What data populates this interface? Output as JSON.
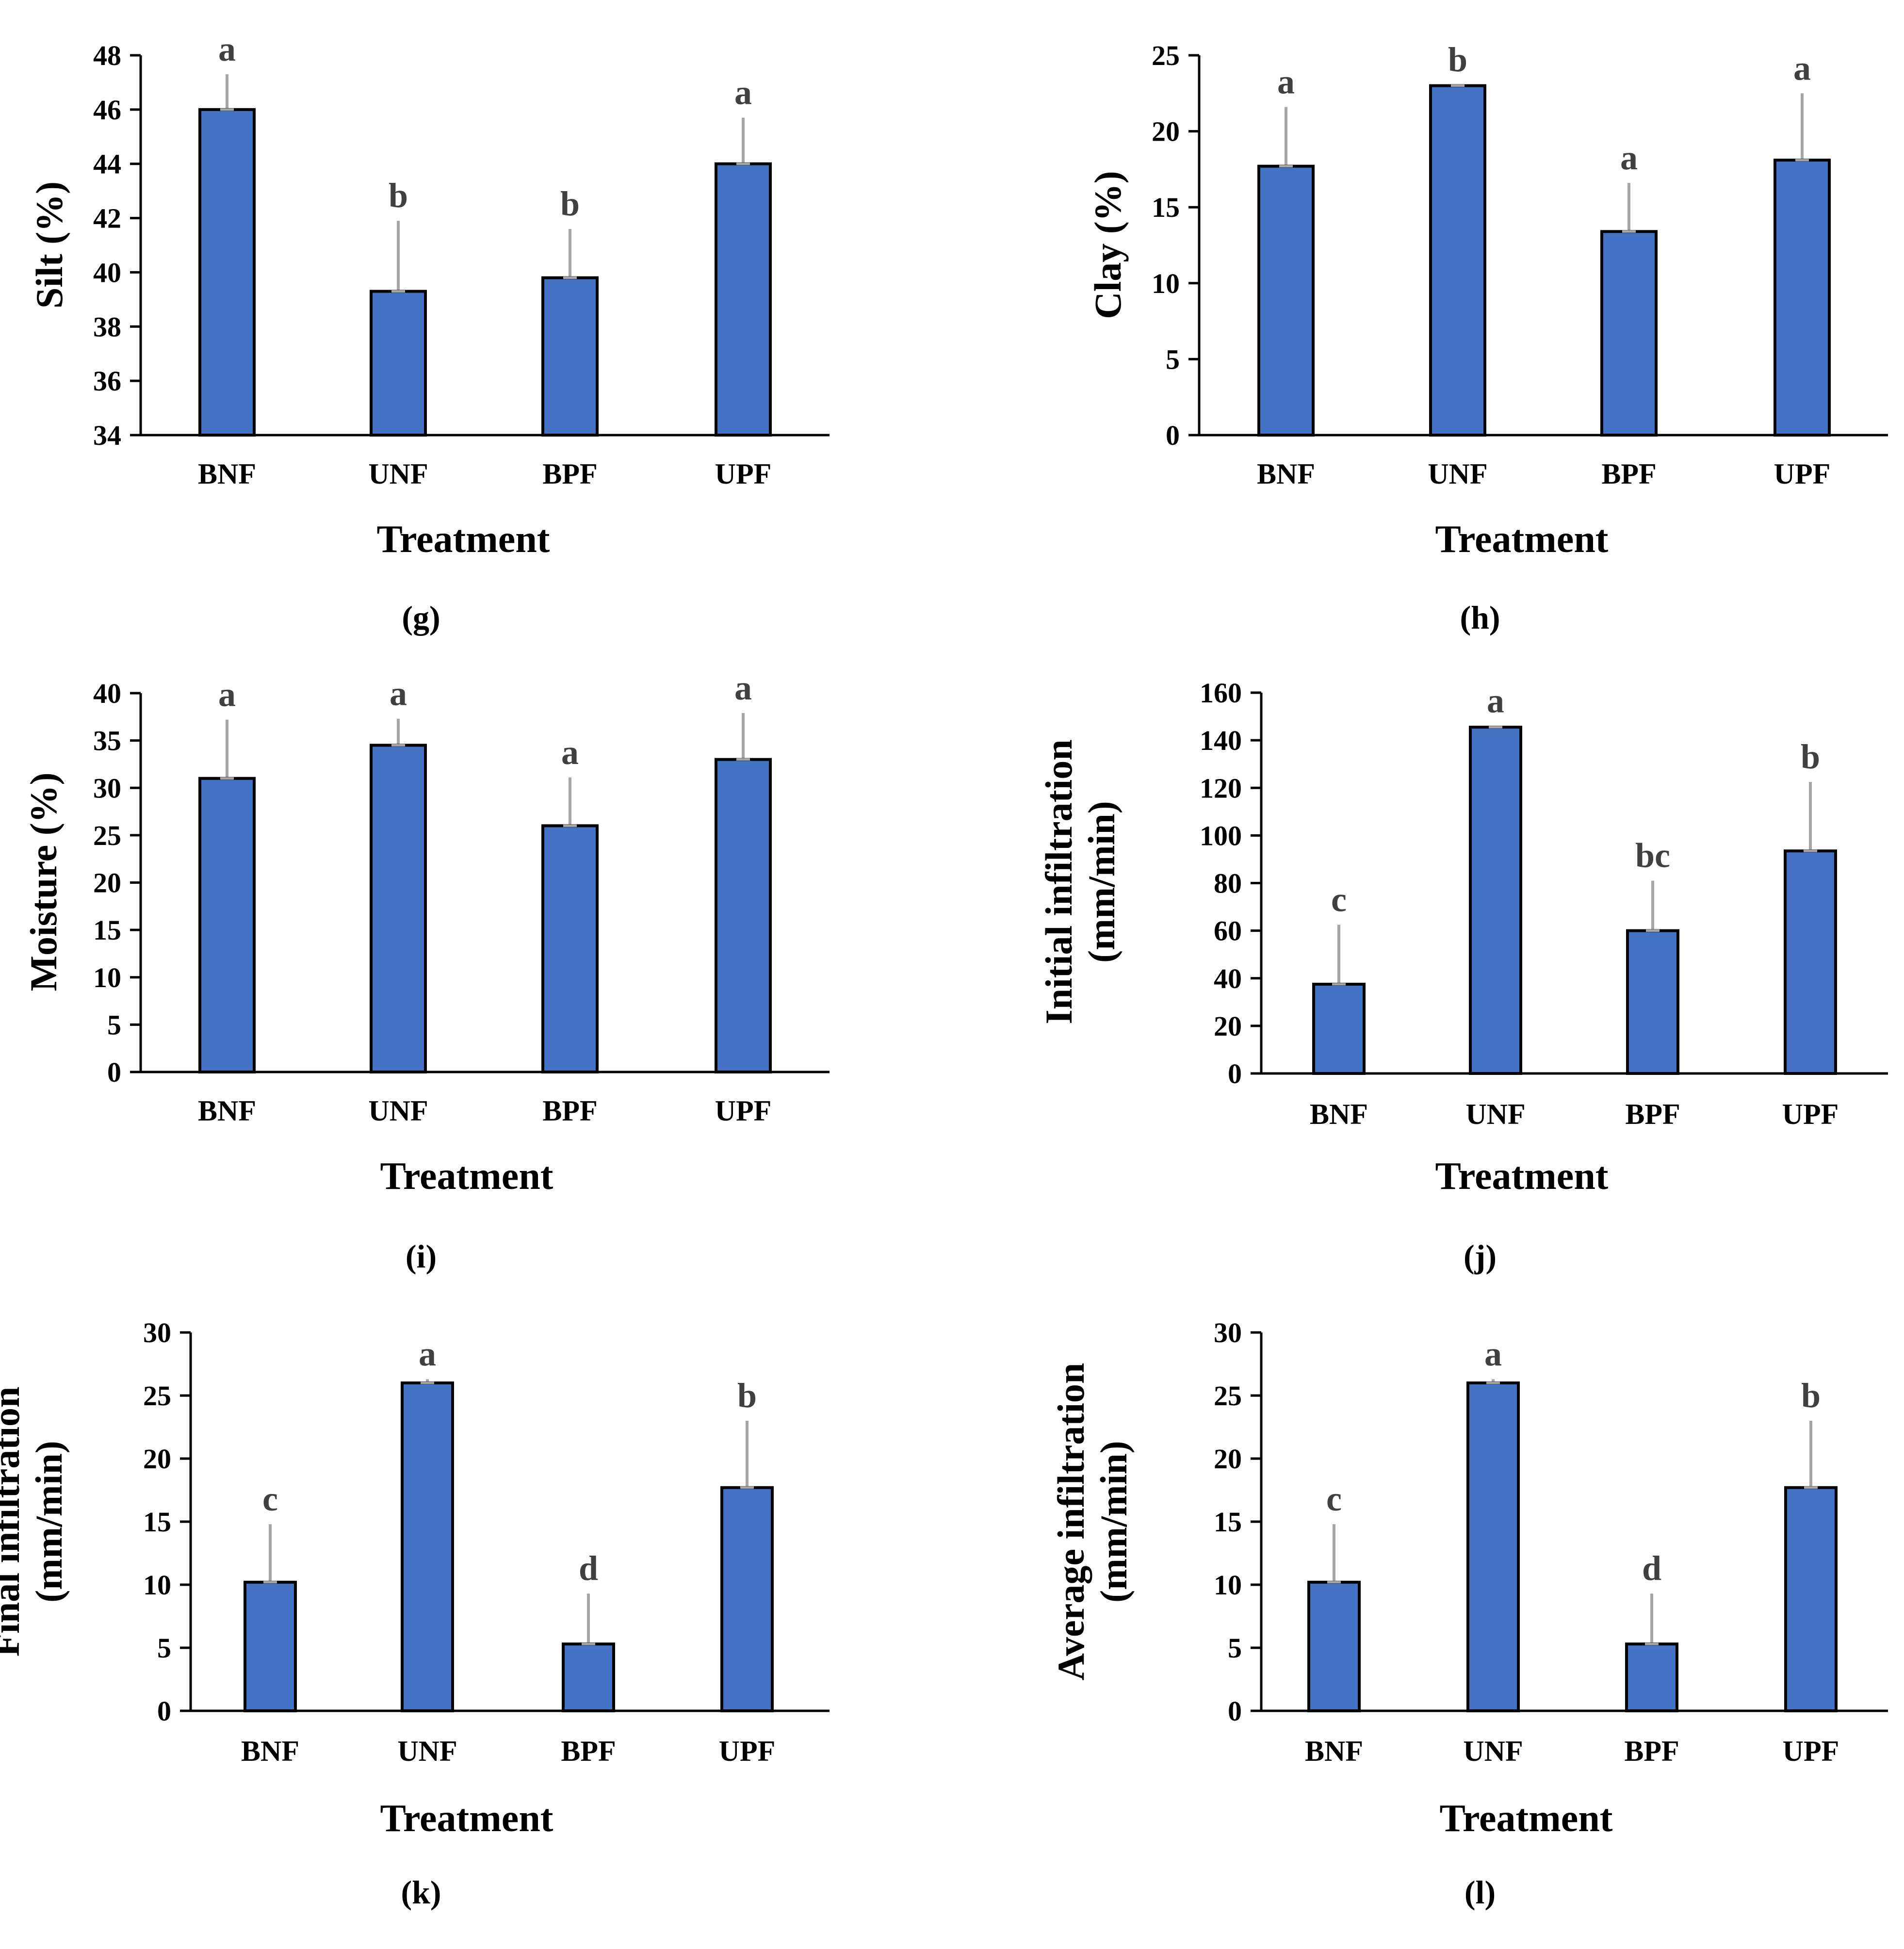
{
  "colors": {
    "bar_fill": "#4472C4",
    "bar_stroke": "#000000",
    "error_bar": "#A6A6A6",
    "text": "#000000",
    "letter_text": "#404040"
  },
  "chart_data": [
    {
      "type": "bar",
      "panel_label": "(g)",
      "categories": [
        "BNF",
        "UNF",
        "BPF",
        "UPF"
      ],
      "values": [
        46.0,
        39.3,
        39.8,
        44.0
      ],
      "errors": [
        1.3,
        2.6,
        1.8,
        1.7
      ],
      "significance_letters": [
        "a",
        "b",
        "b",
        "a"
      ],
      "xlabel": "Treatment",
      "ylabel_lines": [
        "Silt (%)"
      ],
      "ylim": [
        34,
        48
      ],
      "yticks": [
        34,
        36,
        38,
        40,
        42,
        44,
        46,
        48
      ],
      "ytick_labels": [
        "34",
        "36",
        "38",
        "40",
        "42",
        "44",
        "46",
        "48"
      ]
    },
    {
      "type": "bar",
      "panel_label": "(h)",
      "categories": [
        "BNF",
        "UNF",
        "BPF",
        "UPF"
      ],
      "values": [
        17.7,
        23.0,
        13.4,
        18.1
      ],
      "errors": [
        3.9,
        0.05,
        3.2,
        4.4
      ],
      "significance_letters": [
        "a",
        "b",
        "a",
        "a"
      ],
      "xlabel": "Treatment",
      "ylabel_lines": [
        "Clay (%)"
      ],
      "ylim": [
        0,
        25
      ],
      "yticks": [
        0,
        5,
        10,
        15,
        20,
        25
      ],
      "ytick_labels": [
        "0",
        "5",
        "10",
        "15",
        "20",
        "25"
      ]
    },
    {
      "type": "bar",
      "panel_label": "(i)",
      "categories": [
        "BNF",
        "UNF",
        "BPF",
        "UPF"
      ],
      "values": [
        31.0,
        34.5,
        26.0,
        33.0
      ],
      "errors": [
        6.2,
        2.8,
        5.1,
        4.9
      ],
      "significance_letters": [
        "a",
        "a",
        "a",
        "a"
      ],
      "xlabel": "Treatment",
      "ylabel_lines": [
        "Moisture (%)"
      ],
      "ylim": [
        0,
        40
      ],
      "yticks": [
        0,
        5,
        10,
        15,
        20,
        25,
        30,
        35,
        40
      ],
      "ytick_labels": [
        "0",
        "5",
        "10",
        "15",
        "20",
        "25",
        "30",
        "35",
        "40"
      ]
    },
    {
      "type": "bar",
      "panel_label": "(j)",
      "categories": [
        "BNF",
        "UNF",
        "BPF",
        "UPF"
      ],
      "values": [
        37.5,
        145.5,
        60.0,
        93.5
      ],
      "errors": [
        25.0,
        0.5,
        21.0,
        29.0
      ],
      "significance_letters": [
        "c",
        "a",
        "bc",
        "b"
      ],
      "xlabel": "Treatment",
      "ylabel_lines": [
        "Initial infiltration",
        "(mm/min)"
      ],
      "ylim": [
        0,
        160
      ],
      "yticks": [
        0,
        20,
        40,
        60,
        80,
        100,
        120,
        140,
        160
      ],
      "ytick_labels": [
        "0",
        "20",
        "40",
        "60",
        "80",
        "100",
        "120",
        "140",
        "160"
      ]
    },
    {
      "type": "bar",
      "panel_label": "(k)",
      "categories": [
        "BNF",
        "UNF",
        "BPF",
        "UPF"
      ],
      "values": [
        10.2,
        26.0,
        5.3,
        17.7
      ],
      "errors": [
        4.6,
        0.3,
        4.0,
        5.3
      ],
      "significance_letters": [
        "c",
        "a",
        "d",
        "b"
      ],
      "xlabel": "Treatment",
      "ylabel_lines": [
        "Final infiltration",
        "(mm/min)"
      ],
      "ylim": [
        0,
        30
      ],
      "yticks": [
        0,
        5,
        10,
        15,
        20,
        25,
        30
      ],
      "ytick_labels": [
        "0",
        "5",
        "10",
        "15",
        "20",
        "25",
        "30"
      ]
    },
    {
      "type": "bar",
      "panel_label": "(l)",
      "categories": [
        "BNF",
        "UNF",
        "BPF",
        "UPF"
      ],
      "values": [
        10.2,
        26.0,
        5.3,
        17.7
      ],
      "errors": [
        4.6,
        0.3,
        4.0,
        5.3
      ],
      "significance_letters": [
        "c",
        "a",
        "d",
        "b"
      ],
      "xlabel": "Treatment",
      "ylabel_lines": [
        "Average infiltration",
        "(mm/min)"
      ],
      "ylim": [
        0,
        30
      ],
      "yticks": [
        0,
        5,
        10,
        15,
        20,
        25,
        30
      ],
      "ytick_labels": [
        "0",
        "5",
        "10",
        "15",
        "20",
        "25",
        "30"
      ]
    }
  ]
}
